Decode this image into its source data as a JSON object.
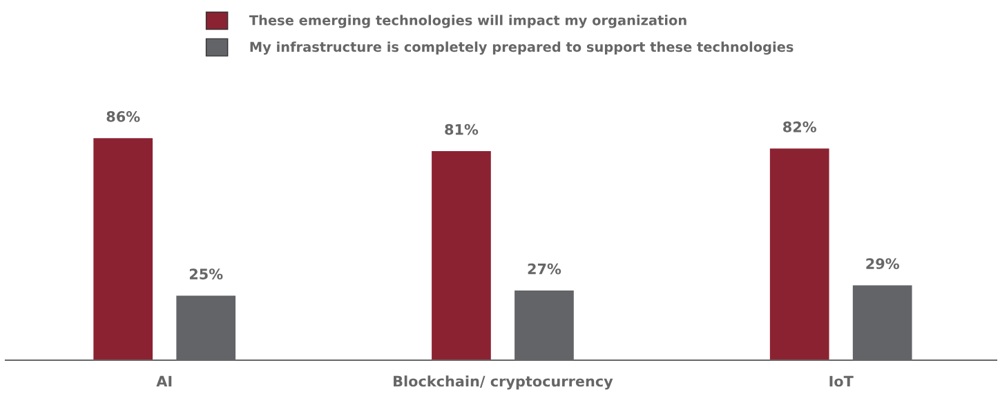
{
  "chart_data": {
    "type": "bar",
    "categories": [
      "AI",
      "Blockchain/ cryptocurrency",
      "IoT"
    ],
    "series": [
      {
        "name": "These emerging technologies will impact my organization",
        "color": "#8b2232",
        "values": [
          86,
          81,
          82
        ],
        "value_labels": [
          "86%",
          "81%",
          "82%"
        ]
      },
      {
        "name": "My infrastructure is completely prepared to support these technologies",
        "color": "#636468",
        "values": [
          25,
          27,
          29
        ],
        "value_labels": [
          "25%",
          "27%",
          "29%"
        ]
      }
    ],
    "legend": "top",
    "grid": false
  }
}
